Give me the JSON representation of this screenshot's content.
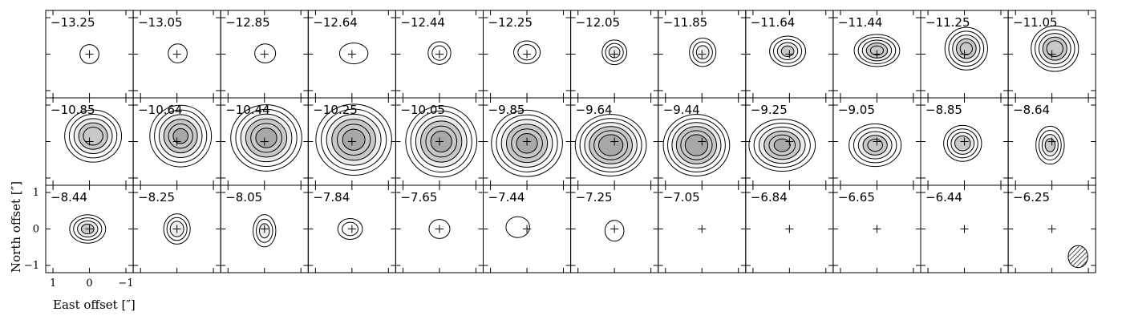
{
  "chart_data": {
    "type": "channel-map",
    "xlabel": "East offset [″]",
    "ylabel": "North offset [″]",
    "x_ticks": [
      1,
      0,
      -1
    ],
    "y_ticks": [
      1,
      0,
      -1
    ],
    "x_tick_labels": [
      "1",
      "0",
      "−1"
    ],
    "y_tick_labels": [
      "1",
      "0",
      "−1"
    ],
    "xlim": [
      1.2,
      -1.2
    ],
    "ylim": [
      -1.2,
      1.2
    ],
    "grid": false,
    "rows": 3,
    "cols": 12,
    "colors": {
      "positive_contour": "#000000",
      "negative_contour": "#3344cc",
      "fill_light": "#ececec",
      "fill_mid": "#c8c8c8",
      "fill_dark": "#a8a8a8",
      "beam_hatch": "#000000"
    },
    "panels": [
      {
        "label": "−13.25",
        "peak": 1.2,
        "dx": 0.0,
        "dy": 0.0,
        "sx": 0.2,
        "sy": 0.2
      },
      {
        "label": "−13.05",
        "peak": 1.3,
        "dx": -0.02,
        "dy": 0.02,
        "sx": 0.2,
        "sy": 0.2
      },
      {
        "label": "−12.85",
        "peak": 1.4,
        "dx": -0.02,
        "dy": 0.02,
        "sx": 0.22,
        "sy": 0.2
      },
      {
        "label": "−12.64",
        "peak": 1.6,
        "dx": -0.05,
        "dy": 0.02,
        "sx": 0.3,
        "sy": 0.22
      },
      {
        "label": "−12.44",
        "peak": 2.2,
        "dx": 0.0,
        "dy": 0.03,
        "sx": 0.24,
        "sy": 0.24
      },
      {
        "label": "−12.25",
        "peak": 2.5,
        "dx": 0.0,
        "dy": 0.05,
        "sx": 0.28,
        "sy": 0.24
      },
      {
        "label": "−12.05",
        "peak": 3.0,
        "dx": 0.0,
        "dy": 0.05,
        "sx": 0.26,
        "sy": 0.26
      },
      {
        "label": "−11.85",
        "peak": 3.2,
        "dx": -0.02,
        "dy": 0.05,
        "sx": 0.28,
        "sy": 0.3
      },
      {
        "label": "−11.64",
        "peak": 4.0,
        "dx": 0.05,
        "dy": 0.08,
        "sx": 0.38,
        "sy": 0.32
      },
      {
        "label": "−11.44",
        "peak": 5.0,
        "dx": 0.0,
        "dy": 0.1,
        "sx": 0.48,
        "sy": 0.34
      },
      {
        "label": "−11.25",
        "peak": 5.0,
        "dx": -0.05,
        "dy": 0.15,
        "sx": 0.45,
        "sy": 0.45
      },
      {
        "label": "−11.05",
        "peak": 5.5,
        "dx": -0.08,
        "dy": 0.15,
        "sx": 0.5,
        "sy": 0.48
      },
      {
        "label": "−10.85",
        "peak": 5.5,
        "dx": -0.1,
        "dy": 0.15,
        "sx": 0.6,
        "sy": 0.55
      },
      {
        "label": "−10.64",
        "peak": 6.0,
        "dx": -0.1,
        "dy": 0.15,
        "sx": 0.65,
        "sy": 0.65
      },
      {
        "label": "−10.44",
        "peak": 6.5,
        "dx": -0.05,
        "dy": 0.1,
        "sx": 0.75,
        "sy": 0.7
      },
      {
        "label": "−10.25",
        "peak": 6.5,
        "dx": -0.05,
        "dy": 0.05,
        "sx": 0.8,
        "sy": 0.75
      },
      {
        "label": "−10.05",
        "peak": 6.5,
        "dx": -0.05,
        "dy": 0.0,
        "sx": 0.75,
        "sy": 0.75
      },
      {
        "label": "−9.85",
        "peak": 6.5,
        "dx": 0.0,
        "dy": -0.05,
        "sx": 0.75,
        "sy": 0.7
      },
      {
        "label": "−9.64",
        "peak": 7.0,
        "dx": 0.1,
        "dy": -0.1,
        "sx": 0.75,
        "sy": 0.65
      },
      {
        "label": "−9.44",
        "peak": 7.0,
        "dx": 0.15,
        "dy": -0.1,
        "sx": 0.7,
        "sy": 0.65
      },
      {
        "label": "−9.25",
        "peak": 6.0,
        "dx": 0.2,
        "dy": -0.1,
        "sx": 0.7,
        "sy": 0.55
      },
      {
        "label": "−9.05",
        "peak": 5.0,
        "dx": 0.05,
        "dy": -0.1,
        "sx": 0.55,
        "sy": 0.45
      },
      {
        "label": "−8.85",
        "peak": 4.5,
        "dx": 0.05,
        "dy": -0.05,
        "sx": 0.4,
        "sy": 0.38
      },
      {
        "label": "−8.64",
        "peak": 4.0,
        "dx": 0.05,
        "dy": -0.1,
        "sx": 0.3,
        "sy": 0.4
      },
      {
        "label": "−8.44",
        "peak": 4.0,
        "dx": 0.05,
        "dy": 0.0,
        "sx": 0.38,
        "sy": 0.3
      },
      {
        "label": "−8.25",
        "peak": 3.5,
        "dx": 0.0,
        "dy": 0.0,
        "sx": 0.28,
        "sy": 0.32
      },
      {
        "label": "−8.05",
        "peak": 3.0,
        "dx": 0.0,
        "dy": -0.05,
        "sx": 0.24,
        "sy": 0.34
      },
      {
        "label": "−7.84",
        "peak": 2.2,
        "dx": 0.05,
        "dy": 0.0,
        "sx": 0.26,
        "sy": 0.22
      },
      {
        "label": "−7.65",
        "peak": 1.6,
        "dx": 0.0,
        "dy": 0.0,
        "sx": 0.22,
        "sy": 0.2
      },
      {
        "label": "−7.44",
        "peak": 1.5,
        "dx": 0.25,
        "dy": 0.05,
        "sx": 0.25,
        "sy": 0.22
      },
      {
        "label": "−7.25",
        "peak": 1.2,
        "dx": 0.0,
        "dy": -0.05,
        "sx": 0.2,
        "sy": 0.22
      },
      {
        "label": "−7.05",
        "peak": 0.0,
        "dx": 0.0,
        "dy": 0.0,
        "sx": 0.2,
        "sy": 0.2
      },
      {
        "label": "−6.84",
        "peak": 0.0,
        "dx": 0.0,
        "dy": 0.0,
        "sx": 0.2,
        "sy": 0.2
      },
      {
        "label": "−6.65",
        "peak": 0.0,
        "dx": 0.0,
        "dy": 0.0,
        "sx": 0.2,
        "sy": 0.2
      },
      {
        "label": "−6.44",
        "peak": 0.0,
        "dx": 0.0,
        "dy": 0.0,
        "sx": 0.2,
        "sy": 0.2
      },
      {
        "label": "−6.25",
        "peak": 0.0,
        "dx": 0.0,
        "dy": 0.0,
        "sx": 0.2,
        "sy": 0.2
      }
    ],
    "contour_levels": [
      1,
      2,
      3,
      4,
      5,
      6
    ],
    "fill_from_level": 3,
    "beam": {
      "major": 0.55,
      "minor": 0.45,
      "pa_deg": 0,
      "panel_index": 35
    }
  }
}
